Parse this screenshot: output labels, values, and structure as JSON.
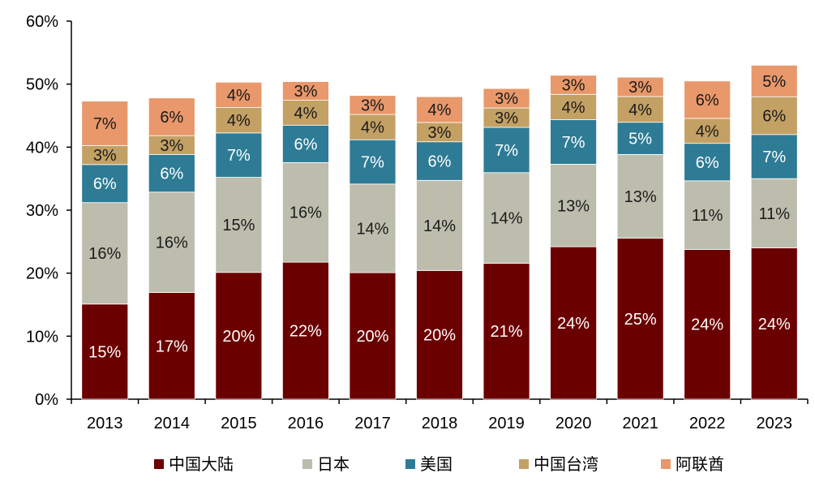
{
  "chart_data": {
    "type": "bar",
    "stacked": true,
    "categories": [
      "2013",
      "2014",
      "2015",
      "2016",
      "2017",
      "2018",
      "2019",
      "2020",
      "2021",
      "2022",
      "2023"
    ],
    "series": [
      {
        "name": "中国大陆",
        "color": "#6b0000",
        "label_color": "#ffffff",
        "values": [
          15,
          17,
          20,
          22,
          20,
          20,
          21,
          24,
          25,
          24,
          24
        ]
      },
      {
        "name": "日本",
        "color": "#bdbdae",
        "label_color": "#1a1a1a",
        "values": [
          16,
          16,
          15,
          16,
          14,
          14,
          14,
          13,
          13,
          11,
          11
        ]
      },
      {
        "name": "美国",
        "color": "#2e7b95",
        "label_color": "#ffffff",
        "values": [
          6,
          6,
          7,
          6,
          7,
          6,
          7,
          7,
          5,
          6,
          7
        ]
      },
      {
        "name": "中国台湾",
        "color": "#c3a064",
        "label_color": "#1a1a1a",
        "values": [
          3,
          3,
          4,
          4,
          4,
          3,
          3,
          4,
          4,
          4,
          6
        ]
      },
      {
        "name": "阿联酋",
        "color": "#e8986a",
        "label_color": "#1a1a1a",
        "values": [
          7,
          6,
          4,
          3,
          3,
          4,
          3,
          3,
          3,
          6,
          5
        ]
      }
    ],
    "data_labels": [
      [
        "15%",
        "17%",
        "20%",
        "22%",
        "20%",
        "20%",
        "21%",
        "24%",
        "25%",
        "24%",
        "24%"
      ],
      [
        "16%",
        "16%",
        "15%",
        "16%",
        "14%",
        "14%",
        "14%",
        "13%",
        "13%",
        "11%",
        "11%"
      ],
      [
        "6%",
        "6%",
        "7%",
        "6%",
        "7%",
        "6%",
        "7%",
        "7%",
        "5%",
        "6%",
        "7%"
      ],
      [
        "3%",
        "3%",
        "4%",
        "4%",
        "4%",
        "3%",
        "3%",
        "4%",
        "4%",
        "4%",
        "6%"
      ],
      [
        "7%",
        "6%",
        "4%",
        "3%",
        "3%",
        "4%",
        "3%",
        "3%",
        "3%",
        "6%",
        "5%"
      ]
    ],
    "totals": [
      47.3,
      47.8,
      50.3,
      50.4,
      48.2,
      48.0,
      49.3,
      51.4,
      51.1,
      50.5,
      53.0
    ],
    "ylim": [
      0,
      60
    ],
    "yticks": [
      0,
      10,
      20,
      30,
      40,
      50,
      60
    ],
    "ytick_labels": [
      "0%",
      "10%",
      "20%",
      "30%",
      "40%",
      "50%",
      "60%"
    ],
    "grid": false,
    "legend_position": "bottom",
    "title": "",
    "xlabel": "",
    "ylabel": ""
  }
}
